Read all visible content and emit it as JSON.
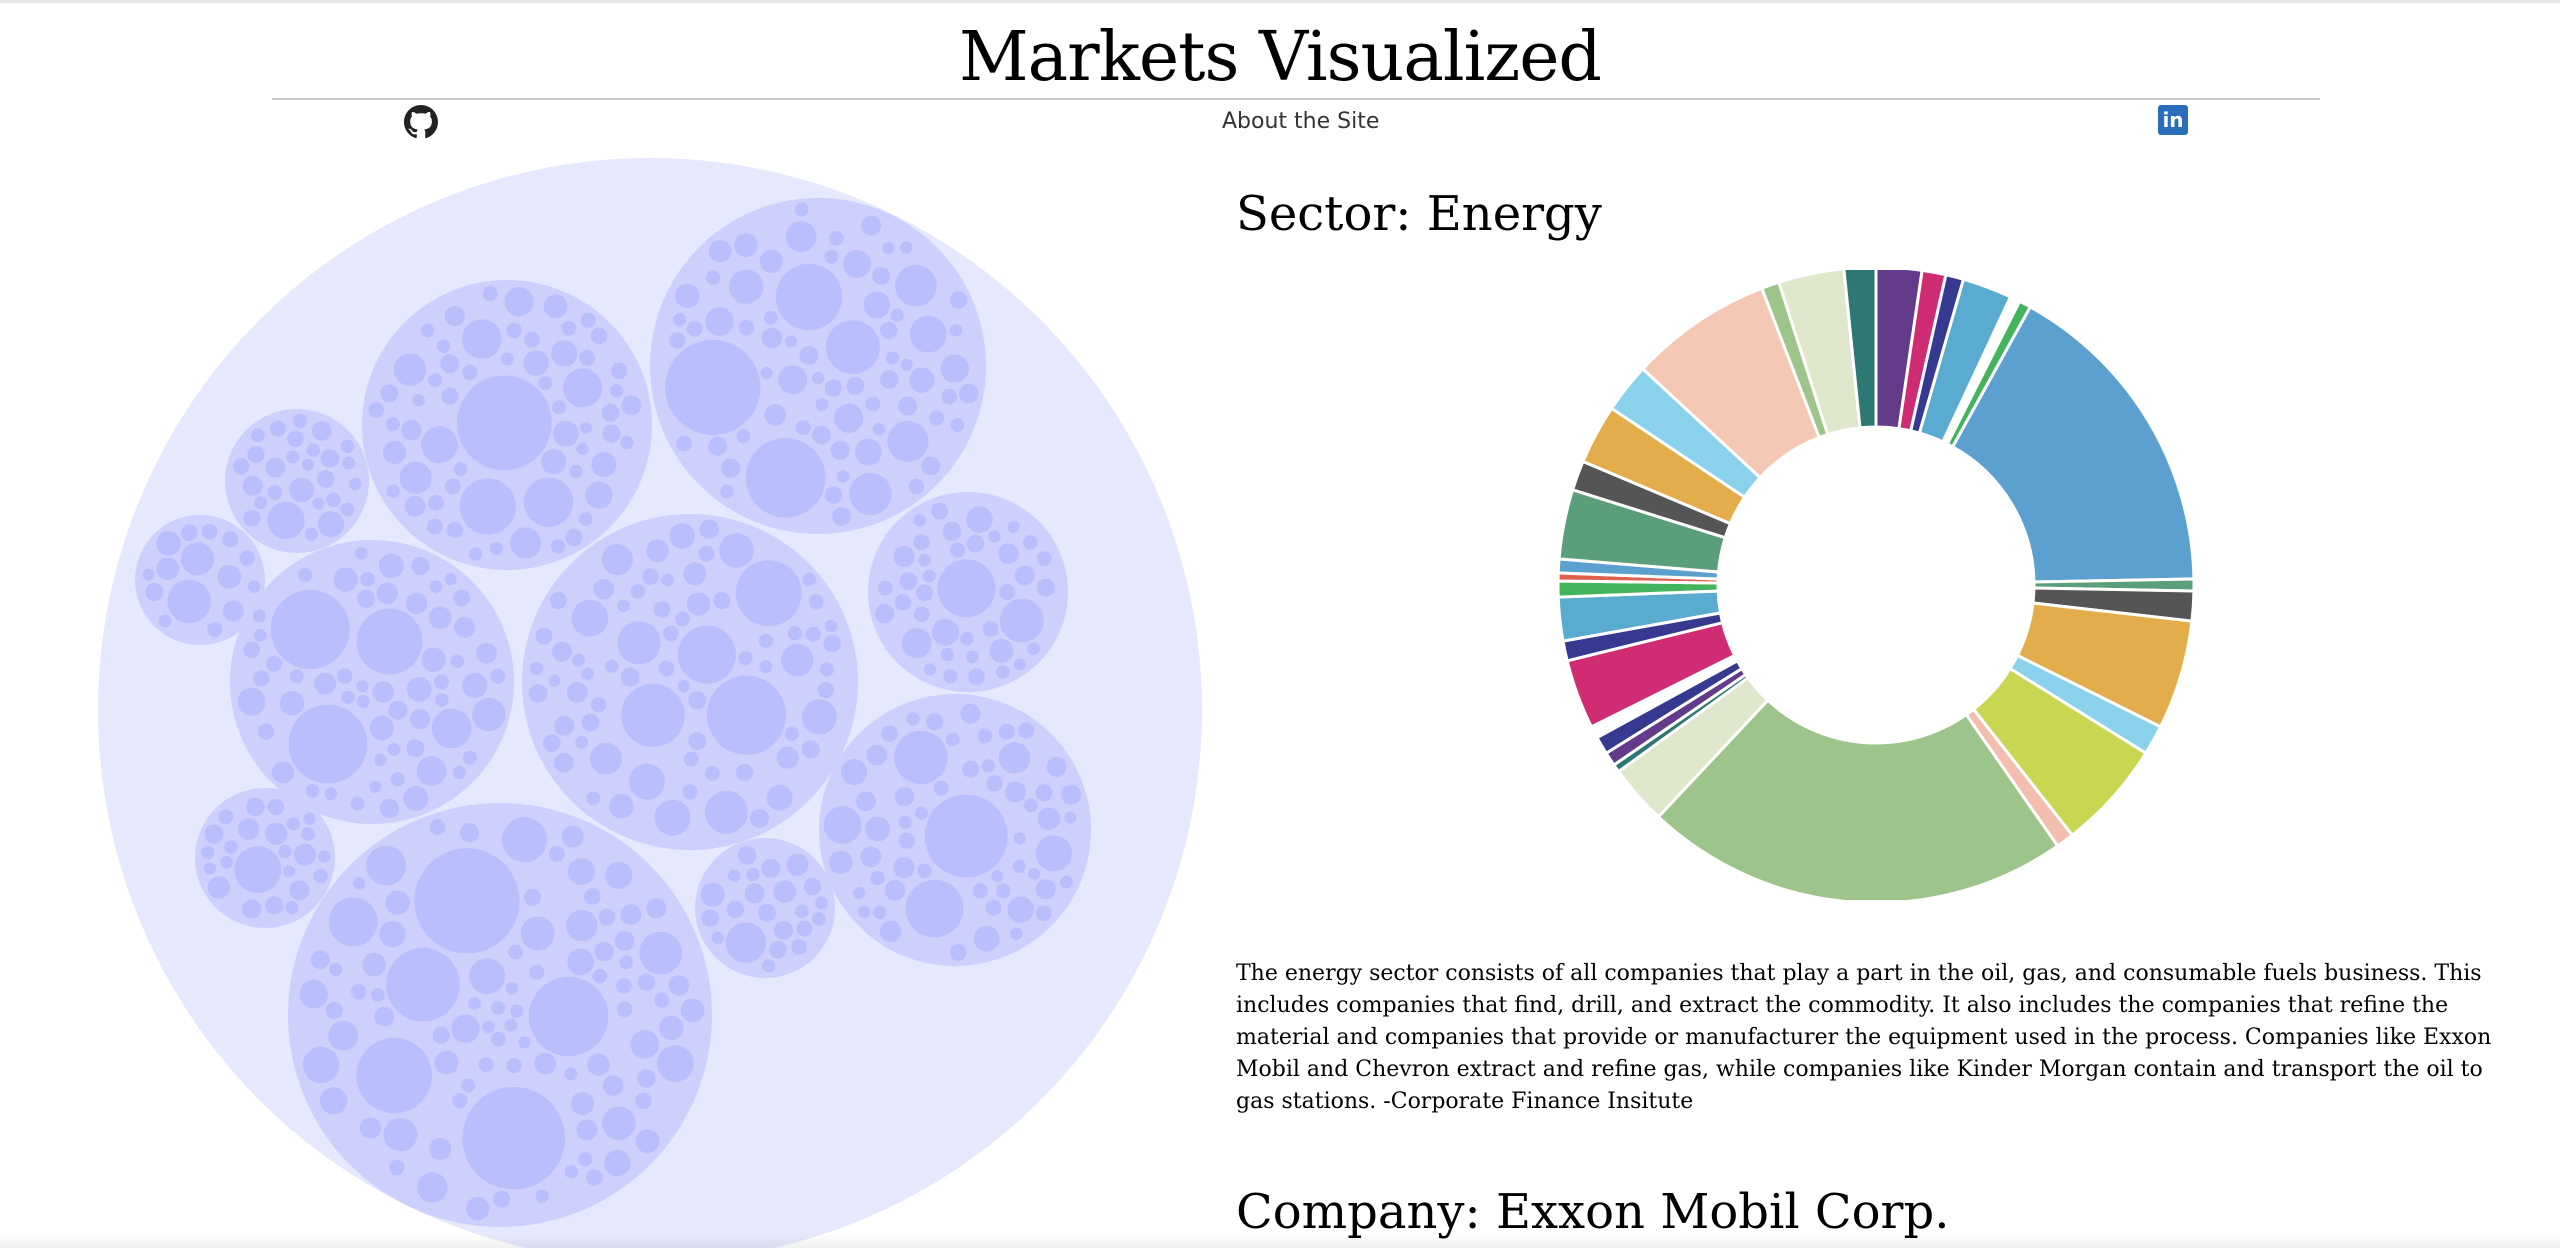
{
  "header": {
    "title": "Markets Visualized",
    "nav_about": "About the Site",
    "github_icon": "github-icon",
    "linkedin_icon": "linkedin-icon",
    "linkedin_label": "in"
  },
  "bubble_chart": {
    "outer_color": "#e6e8fd",
    "group_color": "#cdd0fd",
    "leaf_color": "#b9befc"
  },
  "sector": {
    "heading": "Sector: Energy",
    "description": "The energy sector consists of all companies that play a part in the oil, gas, and consumable fuels business. This includes companies that find, drill, and extract the commodity. It also includes the companies that refine the material and companies that provide or manufacturer the equipment used in the process. Companies like Exxon Mobil and Chevron extract and refine gas, while companies like Kinder Morgan contain and transport the oil to gas stations. -Corporate Finance Insitute"
  },
  "company": {
    "heading": "Company: Exxon Mobil Corp."
  },
  "chart_data": {
    "type": "pie",
    "donut": true,
    "values": [
      2.3,
      1.2,
      0.9,
      2.5,
      0.5,
      0.6,
      16.5,
      0.6,
      1.5,
      5.5,
      1.5,
      5.5,
      0.9,
      21.5,
      3.0,
      0.4,
      0.7,
      0.9,
      0.6,
      3.5,
      1.0,
      2.2,
      0.8,
      0.4,
      0.7,
      3.5,
      1.5,
      3.0,
      2.5,
      7.2,
      0.9,
      3.3,
      1.6
    ],
    "colors": [
      "#633b8a",
      "#cf2c73",
      "#35398f",
      "#59acd0",
      "#ffffff",
      "#44b45c",
      "#5ca0cf",
      "#5a9e7a",
      "#555555",
      "#e3ad4c",
      "#8ad2ec",
      "#c9d652",
      "#f3bdb0",
      "#9dc48a",
      "#dfe8cc",
      "#2e7874",
      "#633b8a",
      "#35398f",
      "#ffffff",
      "#cf2c73",
      "#35398f",
      "#59acd0",
      "#44b45c",
      "#e0604e",
      "#5ca0cf",
      "#5a9e7a",
      "#555555",
      "#e3ad4c",
      "#8ad2ec",
      "#f5c8b5",
      "#9dc48a",
      "#dfe8cc",
      "#2e7874"
    ]
  }
}
